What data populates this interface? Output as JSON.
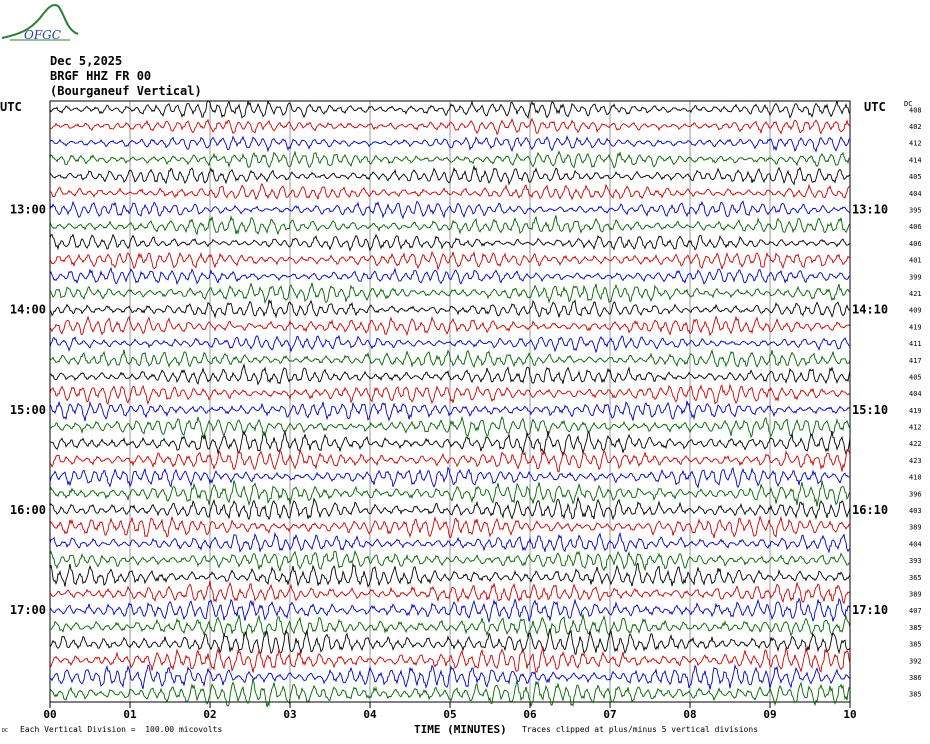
{
  "logo": {
    "text": "OFGC",
    "color": "#2e7d32",
    "text_color": "#1a3fa8"
  },
  "header": {
    "date": "Dec 5,2025",
    "station": "BRGF HHZ FR 00",
    "location": "(Bourganeuf Vertical)"
  },
  "chart_data": {
    "type": "line",
    "title": "",
    "xlabel": "TIME (MINUTES)",
    "ylabel_left": "UTC",
    "ylabel_right": "UTC",
    "dc_label": "DC",
    "xlim": [
      0,
      10
    ],
    "x_ticks": [
      "00",
      "01",
      "02",
      "03",
      "04",
      "05",
      "06",
      "07",
      "08",
      "09",
      "10"
    ],
    "left_time_labels": [
      {
        "label": "13:00",
        "row": 6
      },
      {
        "label": "14:00",
        "row": 12
      },
      {
        "label": "15:00",
        "row": 18
      },
      {
        "label": "16:00",
        "row": 24
      },
      {
        "label": "17:00",
        "row": 30
      }
    ],
    "right_time_labels": [
      {
        "label": "13:10",
        "row": 6
      },
      {
        "label": "14:10",
        "row": 12
      },
      {
        "label": "15:10",
        "row": 18
      },
      {
        "label": "16:10",
        "row": 24
      },
      {
        "label": "17:10",
        "row": 30
      }
    ],
    "trace_colors": [
      "#000000",
      "#d00000",
      "#0000c8",
      "#006400"
    ],
    "dc_offsets": [
      408,
      402,
      412,
      414,
      405,
      404,
      395,
      406,
      406,
      401,
      399,
      421,
      409,
      419,
      411,
      417,
      405,
      404,
      419,
      412,
      422,
      423,
      410,
      396,
      403,
      389,
      404,
      393,
      365,
      389,
      407,
      385,
      385,
      392,
      386,
      385
    ],
    "amplitudes": [
      0.55,
      0.45,
      0.45,
      0.5,
      0.55,
      0.5,
      0.5,
      0.55,
      0.5,
      0.55,
      0.5,
      0.6,
      0.55,
      0.55,
      0.5,
      0.55,
      0.6,
      0.6,
      0.6,
      0.6,
      0.7,
      0.65,
      0.6,
      0.7,
      0.7,
      0.65,
      0.6,
      0.65,
      0.7,
      0.65,
      0.7,
      0.7,
      0.8,
      0.75,
      0.75,
      0.8
    ],
    "grid": true
  },
  "footer": {
    "vertical_division": "Each Vertical Division =  100.00 micovolts",
    "clip_note": "Traces clipped at plus/minus 5 vertical divisions",
    "corner_mark": "DC"
  }
}
